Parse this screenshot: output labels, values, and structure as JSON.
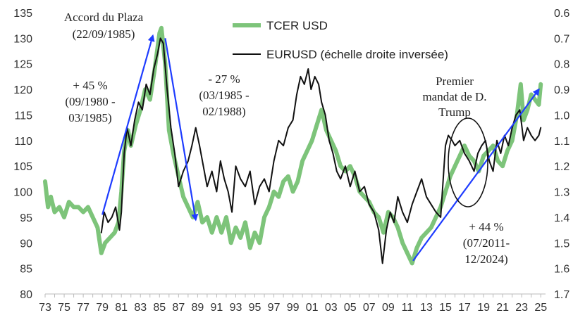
{
  "chart_data": {
    "type": "line",
    "x_range": [
      1973,
      2025.5
    ],
    "x_ticks": [
      "73",
      "75",
      "77",
      "79",
      "81",
      "83",
      "85",
      "87",
      "89",
      "91",
      "93",
      "95",
      "97",
      "99",
      "01",
      "03",
      "05",
      "07",
      "09",
      "11",
      "13",
      "15",
      "17",
      "19",
      "21",
      "23",
      "25"
    ],
    "y_left": {
      "range": [
        80,
        135
      ],
      "ticks": [
        "80",
        "85",
        "90",
        "95",
        "100",
        "105",
        "110",
        "115",
        "120",
        "125",
        "130",
        "135"
      ]
    },
    "y_right": {
      "range": [
        1.7,
        0.6
      ],
      "inverted": true,
      "ticks": [
        "0.6",
        "0.7",
        "0.8",
        "0.9",
        "1.0",
        "1.1",
        "1.2",
        "1.3",
        "1.4",
        "1.5",
        "1.6",
        "1.7"
      ]
    },
    "grid": false,
    "legend_position": "top-center",
    "series": [
      {
        "name": "TCER USD",
        "axis": "left",
        "color": "#7dc47a",
        "x": [
          1973.0,
          1973.3,
          1973.6,
          1974.0,
          1974.5,
          1975.0,
          1975.5,
          1976.0,
          1976.5,
          1977.0,
          1977.5,
          1978.0,
          1978.5,
          1978.9,
          1979.3,
          1979.8,
          1980.3,
          1980.7,
          1981.0,
          1981.3,
          1981.7,
          1982.0,
          1982.5,
          1983.0,
          1983.5,
          1984.0,
          1984.5,
          1985.0,
          1985.2,
          1985.6,
          1986.0,
          1986.5,
          1987.0,
          1987.5,
          1988.0,
          1988.5,
          1989.0,
          1989.5,
          1990.0,
          1990.5,
          1991.0,
          1991.5,
          1992.0,
          1992.5,
          1993.0,
          1993.5,
          1994.0,
          1994.5,
          1995.0,
          1995.5,
          1996.0,
          1996.5,
          1997.0,
          1997.5,
          1998.0,
          1998.5,
          1999.0,
          1999.5,
          2000.0,
          2000.5,
          2001.0,
          2001.5,
          2002.0,
          2002.5,
          2003.0,
          2003.5,
          2004.0,
          2004.5,
          2005.0,
          2005.5,
          2006.0,
          2006.5,
          2007.0,
          2007.5,
          2008.0,
          2008.5,
          2009.0,
          2009.5,
          2010.0,
          2010.5,
          2011.0,
          2011.5,
          2012.0,
          2012.5,
          2013.0,
          2013.5,
          2014.0,
          2014.5,
          2015.0,
          2015.5,
          2016.0,
          2016.5,
          2017.0,
          2017.5,
          2018.0,
          2018.5,
          2019.0,
          2019.5,
          2020.0,
          2020.5,
          2021.0,
          2021.5,
          2022.0,
          2022.5,
          2022.9,
          2023.2,
          2023.6,
          2024.0,
          2024.4,
          2024.8,
          2025.0
        ],
        "values": [
          102,
          97,
          99,
          96,
          97,
          95,
          98,
          97,
          97,
          96,
          97,
          95,
          93,
          88,
          90,
          91,
          92,
          94,
          100,
          108,
          112,
          109,
          113,
          116,
          120,
          118,
          124,
          131,
          132,
          125,
          112,
          107,
          103,
          99,
          97,
          95,
          98,
          94,
          95,
          92,
          95,
          92,
          95,
          90,
          93,
          91,
          94,
          89,
          92,
          90,
          95,
          97,
          100,
          99,
          102,
          103,
          100,
          102,
          106,
          108,
          110,
          113,
          116,
          112,
          110,
          108,
          105,
          104,
          105,
          103,
          100,
          99,
          98,
          96,
          95,
          92,
          96,
          95,
          93,
          90,
          88,
          86,
          89,
          91,
          92,
          93,
          95,
          97,
          100,
          103,
          105,
          107,
          109,
          107,
          106,
          104,
          107,
          108,
          109,
          106,
          105,
          108,
          110,
          115,
          121,
          114,
          116,
          119,
          118,
          117,
          121
        ]
      },
      {
        "name": "EURUSD (échelle droite inversée)",
        "axis": "right",
        "color": "#111111",
        "x": [
          1978.9,
          1979.2,
          1979.6,
          1980.0,
          1980.4,
          1980.8,
          1981.0,
          1981.3,
          1981.6,
          1982.0,
          1982.4,
          1982.8,
          1983.2,
          1983.6,
          1984.0,
          1984.4,
          1984.8,
          1985.1,
          1985.4,
          1985.8,
          1986.2,
          1986.6,
          1987.0,
          1987.5,
          1988.0,
          1988.4,
          1988.8,
          1989.2,
          1989.6,
          1990.0,
          1990.5,
          1991.0,
          1991.4,
          1991.8,
          1992.2,
          1992.6,
          1993.0,
          1993.5,
          1994.0,
          1994.5,
          1995.0,
          1995.5,
          1996.0,
          1996.5,
          1997.0,
          1997.5,
          1998.0,
          1998.5,
          1999.0,
          1999.4,
          1999.8,
          2000.2,
          2000.6,
          2000.9,
          2001.3,
          2001.7,
          2002.0,
          2002.4,
          2002.8,
          2003.2,
          2003.6,
          2004.0,
          2004.5,
          2005.0,
          2005.5,
          2006.0,
          2006.5,
          2007.0,
          2007.5,
          2008.0,
          2008.4,
          2008.8,
          2009.2,
          2009.6,
          2010.0,
          2010.5,
          2011.0,
          2011.5,
          2012.0,
          2012.5,
          2013.0,
          2013.5,
          2014.0,
          2014.5,
          2015.0,
          2015.3,
          2015.7,
          2016.0,
          2016.5,
          2017.0,
          2017.5,
          2018.0,
          2018.4,
          2018.8,
          2019.2,
          2019.6,
          2020.0,
          2020.4,
          2020.8,
          2021.2,
          2021.6,
          2022.0,
          2022.4,
          2022.8,
          2023.2,
          2023.6,
          2024.0,
          2024.4,
          2024.8,
          2025.0
        ],
        "values": [
          1.46,
          1.38,
          1.42,
          1.4,
          1.36,
          1.45,
          1.38,
          1.15,
          1.05,
          1.12,
          1.02,
          0.95,
          0.98,
          0.88,
          0.92,
          0.82,
          0.76,
          0.7,
          0.72,
          0.9,
          1.05,
          1.15,
          1.28,
          1.22,
          1.18,
          1.12,
          1.05,
          1.12,
          1.2,
          1.28,
          1.22,
          1.3,
          1.18,
          1.25,
          1.3,
          1.38,
          1.2,
          1.25,
          1.28,
          1.22,
          1.35,
          1.28,
          1.25,
          1.3,
          1.18,
          1.1,
          1.12,
          1.05,
          1.02,
          0.92,
          0.85,
          0.88,
          0.82,
          0.9,
          0.85,
          0.88,
          0.95,
          1.0,
          1.1,
          1.15,
          1.22,
          1.25,
          1.2,
          1.28,
          1.22,
          1.3,
          1.28,
          1.35,
          1.38,
          1.45,
          1.58,
          1.45,
          1.38,
          1.42,
          1.32,
          1.38,
          1.42,
          1.35,
          1.3,
          1.25,
          1.32,
          1.35,
          1.38,
          1.4,
          1.12,
          1.08,
          1.1,
          1.12,
          1.1,
          1.15,
          1.18,
          1.22,
          1.15,
          1.12,
          1.1,
          1.18,
          1.22,
          1.1,
          1.15,
          1.08,
          1.12,
          1.05,
          1.0,
          0.98,
          1.1,
          1.05,
          1.08,
          1.1,
          1.08,
          1.05
        ]
      }
    ],
    "annotations": [
      {
        "id": "plaza",
        "lines": [
          "Accord du Plaza",
          "(22/09/1985)"
        ]
      },
      {
        "id": "rise",
        "lines": [
          "+ 45 %",
          "(09/1980 -",
          "03/1985)"
        ]
      },
      {
        "id": "fall",
        "lines": [
          "- 27 %",
          "(03/1985 -",
          "02/1988)"
        ]
      },
      {
        "id": "trump",
        "lines": [
          "Premier",
          "mandat de D.",
          "Trump"
        ]
      },
      {
        "id": "rise2",
        "lines": [
          "+ 44 %",
          "(07/2011-",
          "12/2024)"
        ]
      }
    ],
    "arrows": [
      {
        "from": [
          1979.0,
          95.5
        ],
        "to": [
          1984.3,
          130.5
        ],
        "color": "#1e3cff"
      },
      {
        "from": [
          1985.6,
          130.0
        ],
        "to": [
          1988.8,
          94.5
        ],
        "color": "#1e3cff"
      },
      {
        "from": [
          2011.6,
          86.5
        ],
        "to": [
          2024.8,
          120.0
        ],
        "color": "#1e3cff"
      }
    ]
  }
}
